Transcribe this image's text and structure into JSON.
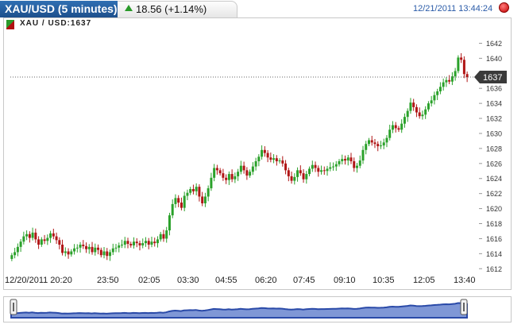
{
  "header": {
    "title": "XAU/USD (5 minutes)",
    "change": "18.56 (+1.14%)",
    "timestamp": "12/21/2011 13:44:24"
  },
  "chart_data": {
    "type": "candlestick",
    "symbol_label": "XAU / USD:1637",
    "last_price_label": "1637",
    "last_price": 1637.5,
    "ylim": [
      1611.5,
      1643.0
    ],
    "y_ticks": [
      1612,
      1614,
      1616,
      1618,
      1620,
      1622,
      1624,
      1626,
      1628,
      1630,
      1632,
      1634,
      1636,
      1638,
      1640,
      1642
    ],
    "x_tick_labels": [
      "12/20/2011 20:20",
      "23:50",
      "02:05",
      "03:30",
      "04:55",
      "06:20",
      "07:45",
      "09:10",
      "10:35",
      "12:05",
      "13:40"
    ],
    "grid": false,
    "up_color": "#2aa12a",
    "down_color": "#b01515",
    "closes": [
      1613.8,
      1614.2,
      1614.9,
      1615.6,
      1616.3,
      1616.6,
      1616.1,
      1616.8,
      1615.9,
      1615.2,
      1615.9,
      1615.7,
      1616.1,
      1616.7,
      1616.3,
      1615.8,
      1615.2,
      1614.1,
      1614.3,
      1613.9,
      1614.3,
      1614.7,
      1614.8,
      1615.2,
      1615.0,
      1614.6,
      1614.9,
      1614.2,
      1614.8,
      1614.5,
      1613.8,
      1614.3,
      1613.7,
      1614.2,
      1614.7,
      1614.8,
      1615.1,
      1615.2,
      1615.7,
      1615.3,
      1615.1,
      1615.6,
      1615.4,
      1615.1,
      1615.4,
      1615.7,
      1615.2,
      1615.6,
      1615.4,
      1615.9,
      1616.6,
      1616.0,
      1617.1,
      1619.1,
      1620.6,
      1621.4,
      1620.8,
      1620.1,
      1621.7,
      1622.1,
      1622.6,
      1622.3,
      1622.9,
      1621.6,
      1620.7,
      1621.6,
      1622.7,
      1624.1,
      1625.4,
      1625.1,
      1624.7,
      1624.1,
      1623.8,
      1624.6,
      1623.9,
      1624.3,
      1624.9,
      1625.7,
      1625.1,
      1624.4,
      1624.9,
      1625.6,
      1626.3,
      1626.9,
      1627.8,
      1627.4,
      1626.8,
      1626.5,
      1626.7,
      1626.3,
      1626.4,
      1626.0,
      1625.1,
      1624.3,
      1623.7,
      1624.2,
      1625.1,
      1624.7,
      1623.9,
      1624.6,
      1625.3,
      1625.8,
      1625.4,
      1624.9,
      1625.1,
      1625.0,
      1625.3,
      1625.5,
      1625.6,
      1625.9,
      1626.3,
      1626.6,
      1626.4,
      1626.8,
      1626.3,
      1625.4,
      1625.7,
      1626.4,
      1627.8,
      1628.6,
      1629.1,
      1628.8,
      1628.6,
      1628.3,
      1628.4,
      1628.8,
      1629.4,
      1630.5,
      1631.1,
      1630.7,
      1630.5,
      1631.3,
      1632.2,
      1633.0,
      1634.1,
      1633.5,
      1632.8,
      1632.3,
      1632.5,
      1633.2,
      1634.0,
      1634.4,
      1635.1,
      1635.6,
      1636.2,
      1636.8,
      1637.1,
      1636.9,
      1637.6,
      1638.3,
      1640.1,
      1639.8,
      1637.9,
      1637.5
    ]
  }
}
